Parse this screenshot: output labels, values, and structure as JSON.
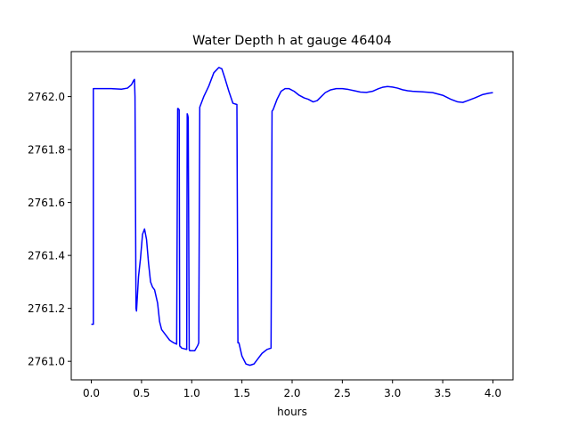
{
  "chart_data": {
    "type": "line",
    "title": "Water Depth h at gauge 46404",
    "xlabel": "hours",
    "ylabel": "",
    "xlim": [
      -0.2,
      4.2
    ],
    "ylim": [
      2760.93,
      2762.17
    ],
    "xticks": [
      0.0,
      0.5,
      1.0,
      1.5,
      2.0,
      2.5,
      3.0,
      3.5,
      4.0
    ],
    "xtick_labels": [
      "0.0",
      "0.5",
      "1.0",
      "1.5",
      "2.0",
      "2.5",
      "3.0",
      "3.5",
      "4.0"
    ],
    "yticks": [
      2761.0,
      2761.2,
      2761.4,
      2761.6,
      2761.8,
      2762.0
    ],
    "ytick_labels": [
      "2761.0",
      "2761.2",
      "2761.4",
      "2761.6",
      "2761.8",
      "2762.0"
    ],
    "grid": false,
    "series": [
      {
        "color": "#0000ff",
        "x": [
          0.0,
          0.02,
          0.02,
          0.025,
          0.1,
          0.2,
          0.3,
          0.36,
          0.4,
          0.42,
          0.43,
          0.435,
          0.44,
          0.445,
          0.45,
          0.47,
          0.49,
          0.51,
          0.53,
          0.55,
          0.57,
          0.59,
          0.61,
          0.63,
          0.66,
          0.68,
          0.7,
          0.72,
          0.75,
          0.78,
          0.82,
          0.85,
          0.86,
          0.865,
          0.875,
          0.88,
          0.885,
          0.89,
          0.9,
          0.93,
          0.95,
          0.955,
          0.96,
          0.965,
          0.97,
          0.975,
          0.98,
          1.0,
          1.03,
          1.06,
          1.07,
          1.08,
          1.12,
          1.17,
          1.22,
          1.27,
          1.3,
          1.33,
          1.37,
          1.41,
          1.45,
          1.46,
          1.47,
          1.5,
          1.54,
          1.58,
          1.62,
          1.66,
          1.7,
          1.75,
          1.79,
          1.8,
          1.81,
          1.85,
          1.89,
          1.93,
          1.97,
          2.02,
          2.07,
          2.12,
          2.16,
          2.21,
          2.25,
          2.29,
          2.33,
          2.38,
          2.44,
          2.5,
          2.56,
          2.62,
          2.68,
          2.74,
          2.8,
          2.86,
          2.9,
          2.95,
          3.0,
          3.05,
          3.1,
          3.15,
          3.2,
          3.3,
          3.4,
          3.5,
          3.58,
          3.65,
          3.7,
          3.75,
          3.82,
          3.9,
          3.96,
          4.0
        ],
        "y": [
          2761.14,
          2761.14,
          2762.03,
          2762.03,
          2762.03,
          2762.03,
          2762.028,
          2762.032,
          2762.045,
          2762.06,
          2762.065,
          2762.0,
          2761.6,
          2761.2,
          2761.19,
          2761.32,
          2761.39,
          2761.48,
          2761.5,
          2761.46,
          2761.37,
          2761.3,
          2761.28,
          2761.27,
          2761.22,
          2761.15,
          2761.12,
          2761.11,
          2761.095,
          2761.08,
          2761.07,
          2761.065,
          2761.955,
          2761.955,
          2761.95,
          2761.06,
          2761.055,
          2761.055,
          2761.05,
          2761.047,
          2761.045,
          2761.935,
          2761.93,
          2761.92,
          2761.5,
          2761.045,
          2761.04,
          2761.04,
          2761.04,
          2761.06,
          2761.07,
          2761.96,
          2762.0,
          2762.04,
          2762.09,
          2762.11,
          2762.105,
          2762.07,
          2762.02,
          2761.975,
          2761.97,
          2761.07,
          2761.07,
          2761.02,
          2760.99,
          2760.985,
          2760.99,
          2761.01,
          2761.03,
          2761.045,
          2761.05,
          2761.945,
          2761.95,
          2761.99,
          2762.02,
          2762.03,
          2762.03,
          2762.02,
          2762.005,
          2761.995,
          2761.99,
          2761.98,
          2761.985,
          2762.0,
          2762.015,
          2762.025,
          2762.03,
          2762.03,
          2762.027,
          2762.022,
          2762.017,
          2762.016,
          2762.02,
          2762.03,
          2762.035,
          2762.038,
          2762.036,
          2762.032,
          2762.026,
          2762.022,
          2762.02,
          2762.018,
          2762.015,
          2762.005,
          2761.99,
          2761.98,
          2761.978,
          2761.985,
          2761.995,
          2762.008,
          2762.013,
          2762.015
        ]
      }
    ]
  }
}
